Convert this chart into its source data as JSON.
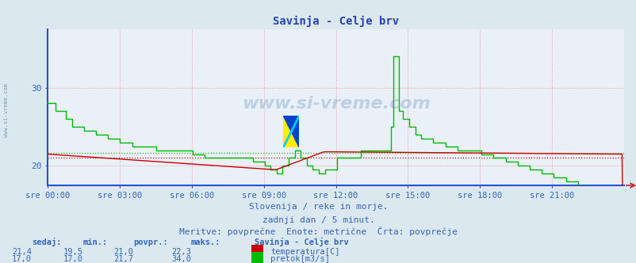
{
  "title": "Savinja - Celje brv",
  "bg_color": "#dce8f0",
  "plot_bg_color": "#eaf0f8",
  "grid_color": "#f08080",
  "x_ticks": [
    "sre 00:00",
    "sre 03:00",
    "sre 06:00",
    "sre 09:00",
    "sre 12:00",
    "sre 15:00",
    "sre 18:00",
    "sre 21:00"
  ],
  "y_min": 17.5,
  "y_max": 37.5,
  "y_ticks": [
    20,
    30
  ],
  "avg_temp": 21.0,
  "avg_flow": 21.7,
  "subtitle1": "Slovenija / reke in morje.",
  "subtitle2": "zadnji dan / 5 minut.",
  "subtitle3": "Meritve: povprečne  Enote: metrične  Črta: povprečje",
  "legend_title": "Savinja - Celje brv",
  "label_sedaj": "sedaj:",
  "label_min": "min.:",
  "label_povpr": "povpr.:",
  "label_maks": "maks.:",
  "temp_sedaj": "21,4",
  "temp_min": "19,5",
  "temp_povpr": "21,0",
  "temp_maks": "22,3",
  "flow_sedaj": "17,0",
  "flow_min": "17,0",
  "flow_povpr": "21,7",
  "flow_maks": "34,0",
  "temp_label": "temperatura[C]",
  "flow_label": "pretok[m3/s]",
  "temp_color": "#cc0000",
  "flow_color": "#00bb00",
  "axis_color": "#2255cc",
  "text_color": "#3366bb",
  "watermark": "www.si-vreme.com",
  "left_label": "www.si-vreme.com",
  "title_color": "#2244aa"
}
